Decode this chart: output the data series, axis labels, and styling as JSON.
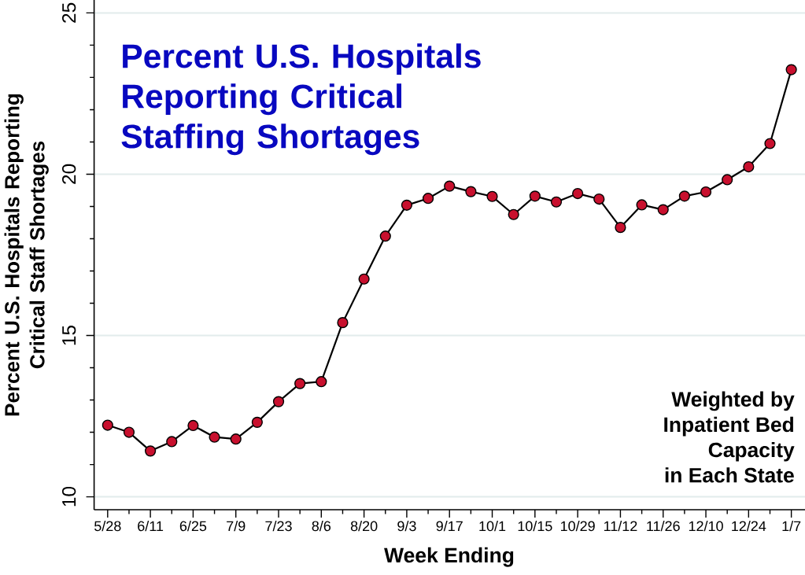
{
  "chart_data": {
    "type": "line",
    "title": "Percent U.S. Hospitals Reporting Critical Staffing Shortages",
    "xlabel": "Week Ending",
    "ylabel": "Percent U.S. Hospitals Reporting Critical Staff Shortages",
    "annotations": [
      "Weighted by",
      "Inpatient Bed",
      "Capacity",
      "in Each State"
    ],
    "categories": [
      "5/28",
      null,
      "6/11",
      null,
      "6/25",
      null,
      "7/9",
      null,
      "7/23",
      null,
      "8/6",
      null,
      "8/20",
      null,
      "9/3",
      null,
      "9/17",
      null,
      "10/1",
      null,
      "10/15",
      null,
      "10/29",
      null,
      "11/12",
      null,
      "11/26",
      null,
      "12/10",
      null,
      "12/24",
      null,
      "1/7"
    ],
    "values": [
      12.22,
      12.0,
      11.42,
      11.71,
      12.21,
      11.85,
      11.79,
      12.31,
      12.95,
      13.51,
      13.57,
      15.4,
      16.75,
      18.08,
      19.04,
      19.25,
      19.63,
      19.46,
      19.31,
      18.75,
      19.32,
      19.14,
      19.4,
      19.23,
      18.35,
      19.05,
      18.9,
      19.32,
      19.45,
      19.83,
      20.23,
      20.95,
      23.24
    ],
    "color": "#c8102e",
    "ylim": [
      9.6,
      25.4
    ],
    "yticks": [
      10,
      {
        "value": 11,
        "label": null
      },
      {
        "value": 12,
        "label": null
      },
      {
        "value": 13,
        "label": null
      },
      {
        "value": 14,
        "label": null
      },
      15,
      {
        "value": 16,
        "label": null
      },
      {
        "value": 17,
        "label": null
      },
      {
        "value": 18,
        "label": null
      },
      {
        "value": 19,
        "label": null
      },
      20,
      {
        "value": 21,
        "label": null
      },
      {
        "value": 22,
        "label": null
      },
      {
        "value": 23,
        "label": null
      },
      {
        "value": 24,
        "label": null
      },
      25
    ],
    "grid": "y",
    "marker": "circle",
    "line_style": "solid"
  }
}
